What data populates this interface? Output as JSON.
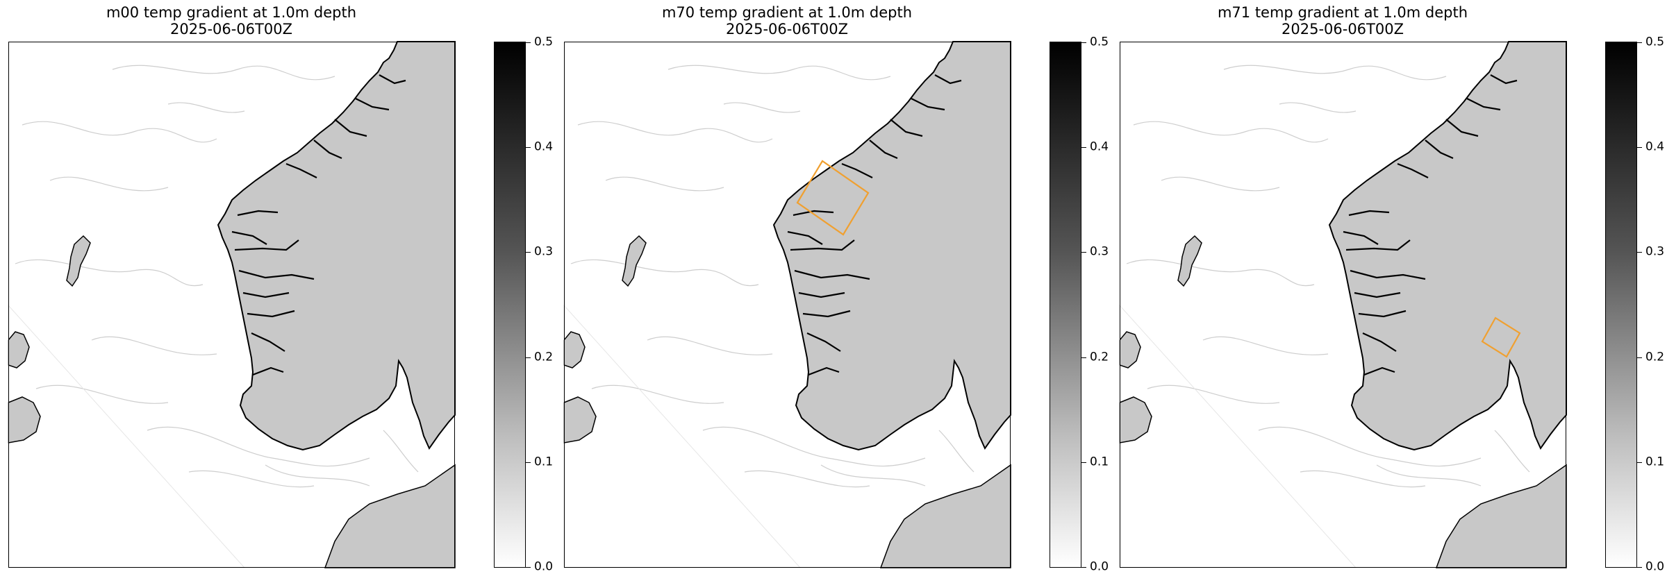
{
  "panels": [
    {
      "model": "m00",
      "title_line1": "m00 temp gradient at 1.0m depth",
      "title_line2": "2025-06-06T00Z",
      "highlight": false
    },
    {
      "model": "m70",
      "title_line1": "m70 temp gradient at 1.0m depth",
      "title_line2": "2025-06-06T00Z",
      "highlight": true
    },
    {
      "model": "m71",
      "title_line1": "m71 temp gradient at 1.0m depth",
      "title_line2": "2025-06-06T00Z",
      "highlight": true
    }
  ],
  "colorbar": {
    "range": [
      0.0,
      0.5
    ],
    "ticks": [
      "0.5",
      "0.4",
      "0.3",
      "0.2",
      "0.1",
      "0.0"
    ],
    "colormap": "greys",
    "low_color": "#ffffff",
    "high_color": "#000000"
  },
  "colors": {
    "land": "#c8c8c8",
    "coastline": "#000000",
    "highlight_box": "#f0a030",
    "domain_outside": "#ffffff"
  },
  "chart_data": [
    {
      "type": "heatmap",
      "title": "m00 temp gradient at 1.0m depth",
      "subtitle": "2025-06-06T00Z",
      "colorbar_range": [
        0.0,
        0.5
      ],
      "colorbar_ticks": [
        0.0,
        0.1,
        0.2,
        0.3,
        0.4,
        0.5
      ]
    },
    {
      "type": "heatmap",
      "title": "m70 temp gradient at 1.0m depth",
      "subtitle": "2025-06-06T00Z",
      "colorbar_range": [
        0.0,
        0.5
      ],
      "colorbar_ticks": [
        0.0,
        0.1,
        0.2,
        0.3,
        0.4,
        0.5
      ],
      "annotation": "highlight box"
    },
    {
      "type": "heatmap",
      "title": "m71 temp gradient at 1.0m depth",
      "subtitle": "2025-06-06T00Z",
      "colorbar_range": [
        0.0,
        0.5
      ],
      "colorbar_ticks": [
        0.0,
        0.1,
        0.2,
        0.3,
        0.4,
        0.5
      ],
      "annotation": "highlight box"
    }
  ]
}
